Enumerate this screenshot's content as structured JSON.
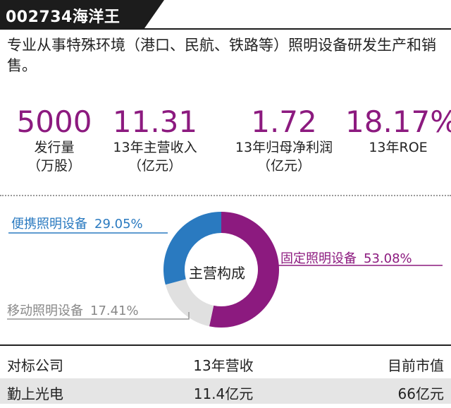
{
  "header": {
    "title": "002734海洋王"
  },
  "description": "专业从事特殊环境（港口、民航、铁路等）照明设备研发生产和销售。",
  "stats": [
    {
      "value": "5000",
      "label1": "发行量",
      "label2": "（万股）"
    },
    {
      "value": "11.31",
      "label1": "13年主营收入",
      "label2": "（亿元）"
    },
    {
      "value": "1.72",
      "label1": "13年归母净利润",
      "label2": "（亿元）"
    },
    {
      "value": "18.17%",
      "label1": "13年ROE",
      "label2": ""
    }
  ],
  "chart_data": {
    "type": "pie",
    "title": "主营构成",
    "slices": [
      {
        "name": "固定照明设备",
        "value": 53.08,
        "display": "53.08%",
        "color": "#8c1a7f"
      },
      {
        "name": "移动照明设备",
        "value": 17.41,
        "display": "17.41%",
        "color": "#e0e0e0"
      },
      {
        "name": "便携照明设备",
        "value": 29.05,
        "display": "29.05%",
        "color": "#2a7ac0"
      }
    ]
  },
  "table": {
    "headers": [
      "对标公司",
      "13年营收",
      "目前市值"
    ],
    "rows": [
      [
        "勤上光电",
        "11.4亿元",
        "66亿元"
      ]
    ]
  }
}
